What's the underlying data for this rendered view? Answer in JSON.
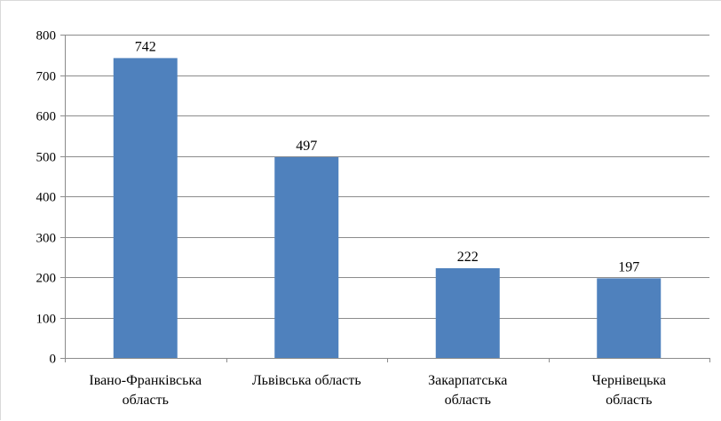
{
  "chart_data": {
    "type": "bar",
    "categories": [
      [
        "Івано-Франківська",
        "область"
      ],
      [
        "Львівська область"
      ],
      [
        "Закарпатська",
        "область"
      ],
      [
        "Чернівецька",
        "область"
      ]
    ],
    "values": [
      742,
      497,
      222,
      197
    ],
    "ylim": [
      0,
      800
    ],
    "yticks": [
      0,
      100,
      200,
      300,
      400,
      500,
      600,
      700,
      800
    ],
    "grid": true,
    "legend": "none",
    "bar_color": "#4f81bd",
    "gridline_color": "#8c8c8c",
    "axis_color": "#8c8c8c"
  }
}
